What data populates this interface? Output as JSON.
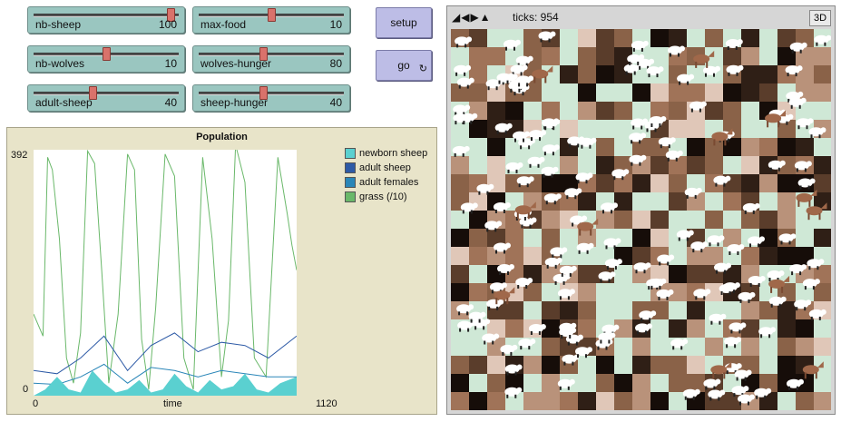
{
  "sliders": [
    {
      "id": "nb-sheep",
      "label": "nb-sheep",
      "value": "100",
      "fraction": 0.97
    },
    {
      "id": "max-food",
      "label": "max-food",
      "value": "10",
      "fraction": 0.5
    },
    {
      "id": "nb-wolves",
      "label": "nb-wolves",
      "value": "10",
      "fraction": 0.5
    },
    {
      "id": "wolves-hunger",
      "label": "wolves-hunger",
      "value": "80",
      "fraction": 0.44
    },
    {
      "id": "adult-sheep",
      "label": "adult-sheep",
      "value": "40",
      "fraction": 0.4
    },
    {
      "id": "sheep-hunger",
      "label": "sheep-hunger",
      "value": "40",
      "fraction": 0.44
    }
  ],
  "buttons": {
    "setup": "setup",
    "go": "go",
    "go_icon": "forever-icon"
  },
  "plot": {
    "title": "Population",
    "xlabel": "time",
    "xmin": "0",
    "xmax": "1120",
    "ymin": "0",
    "ymax": "392",
    "legend": [
      {
        "name": "newborn sheep",
        "color": "#5ad0d0"
      },
      {
        "name": "adult sheep",
        "color": "#2d5aa6"
      },
      {
        "name": "adult females",
        "color": "#2a86b8"
      },
      {
        "name": "grass (/10)",
        "color": "#6ab86a"
      }
    ]
  },
  "view": {
    "ticks_label": "ticks: 954",
    "three_d": "3D"
  },
  "chart_data": {
    "type": "line",
    "title": "Population",
    "xlabel": "time",
    "ylabel": "",
    "xlim": [
      0,
      1120
    ],
    "ylim": [
      0,
      392
    ],
    "series": [
      {
        "name": "grass (/10)",
        "x": [
          0,
          40,
          60,
          80,
          110,
          140,
          170,
          200,
          230,
          260,
          290,
          320,
          360,
          400,
          430,
          460,
          490,
          520,
          560,
          600,
          640,
          680,
          720,
          760,
          800,
          830,
          860,
          900,
          940,
          990,
          1040,
          1080,
          1100,
          1120
        ],
        "values": [
          130,
          95,
          380,
          360,
          250,
          60,
          20,
          100,
          390,
          370,
          200,
          20,
          130,
          385,
          360,
          90,
          10,
          140,
          385,
          350,
          60,
          10,
          380,
          250,
          30,
          120,
          400,
          340,
          60,
          30,
          380,
          290,
          240,
          200
        ]
      },
      {
        "name": "adult sheep",
        "x": [
          0,
          100,
          200,
          300,
          400,
          500,
          600,
          700,
          800,
          900,
          1000,
          1120
        ],
        "values": [
          40,
          35,
          60,
          95,
          40,
          80,
          100,
          70,
          85,
          80,
          60,
          95
        ]
      },
      {
        "name": "adult females",
        "x": [
          0,
          100,
          200,
          300,
          400,
          500,
          600,
          700,
          800,
          900,
          1000,
          1120
        ],
        "values": [
          20,
          18,
          30,
          50,
          20,
          45,
          40,
          30,
          40,
          35,
          30,
          30
        ]
      },
      {
        "name": "newborn sheep",
        "x": [
          0,
          50,
          100,
          150,
          200,
          250,
          300,
          350,
          400,
          450,
          500,
          550,
          600,
          650,
          700,
          750,
          800,
          850,
          900,
          950,
          1000,
          1050,
          1120
        ],
        "values": [
          0,
          10,
          30,
          10,
          5,
          40,
          20,
          5,
          10,
          25,
          5,
          10,
          35,
          15,
          5,
          25,
          10,
          15,
          35,
          10,
          5,
          20,
          30
        ]
      }
    ]
  }
}
